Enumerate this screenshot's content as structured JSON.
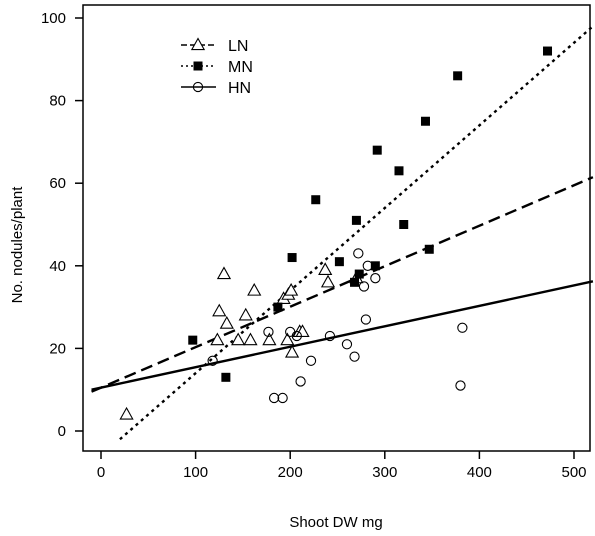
{
  "chart_data": {
    "type": "scatter",
    "title": "",
    "xlabel": "Shoot DW mg",
    "ylabel": "No. nodules/plant",
    "xlim": [
      -10,
      520
    ],
    "ylim": [
      -2,
      102
    ],
    "xticks": [
      0,
      100,
      200,
      300,
      400,
      500
    ],
    "yticks": [
      0,
      20,
      40,
      60,
      80,
      100
    ],
    "grid": false,
    "legend_position": "top-left",
    "series": [
      {
        "name": "LN",
        "marker": "open-triangle",
        "line_style": "dashed",
        "color": "#000000",
        "points": [
          [
            27,
            4
          ],
          [
            123,
            22
          ],
          [
            125,
            29
          ],
          [
            130,
            38
          ],
          [
            133,
            26
          ],
          [
            145,
            22
          ],
          [
            153,
            28
          ],
          [
            158,
            22
          ],
          [
            162,
            34
          ],
          [
            178,
            22
          ],
          [
            193,
            32
          ],
          [
            197,
            22
          ],
          [
            198,
            33
          ],
          [
            201,
            34
          ],
          [
            202,
            19
          ],
          [
            210,
            24
          ],
          [
            213,
            24
          ],
          [
            237,
            39
          ],
          [
            240,
            36
          ],
          [
            270,
            37
          ]
        ],
        "fit": {
          "intercept": 10.5,
          "slope": 0.098
        }
      },
      {
        "name": "MN",
        "marker": "filled-square",
        "line_style": "dotted",
        "color": "#000000",
        "points": [
          [
            97,
            22
          ],
          [
            132,
            13
          ],
          [
            187,
            30
          ],
          [
            202,
            42
          ],
          [
            227,
            56
          ],
          [
            252,
            41
          ],
          [
            268,
            36
          ],
          [
            270,
            51
          ],
          [
            273,
            38
          ],
          [
            290,
            40
          ],
          [
            292,
            68
          ],
          [
            315,
            63
          ],
          [
            320,
            50
          ],
          [
            343,
            75
          ],
          [
            347,
            44
          ],
          [
            377,
            86
          ],
          [
            472,
            92
          ]
        ],
        "fit": {
          "intercept": -6.0,
          "slope": 0.2
        }
      },
      {
        "name": "HN",
        "marker": "open-circle",
        "line_style": "solid",
        "color": "#000000",
        "points": [
          [
            118,
            17
          ],
          [
            177,
            24
          ],
          [
            183,
            8
          ],
          [
            192,
            8
          ],
          [
            200,
            24
          ],
          [
            207,
            23
          ],
          [
            211,
            12
          ],
          [
            222,
            17
          ],
          [
            242,
            23
          ],
          [
            260,
            21
          ],
          [
            268,
            18
          ],
          [
            272,
            43
          ],
          [
            278,
            35
          ],
          [
            280,
            27
          ],
          [
            282,
            40
          ],
          [
            290,
            37
          ],
          [
            380,
            11
          ],
          [
            382,
            25
          ]
        ],
        "fit": {
          "intercept": 10.5,
          "slope": 0.0495
        }
      }
    ]
  }
}
